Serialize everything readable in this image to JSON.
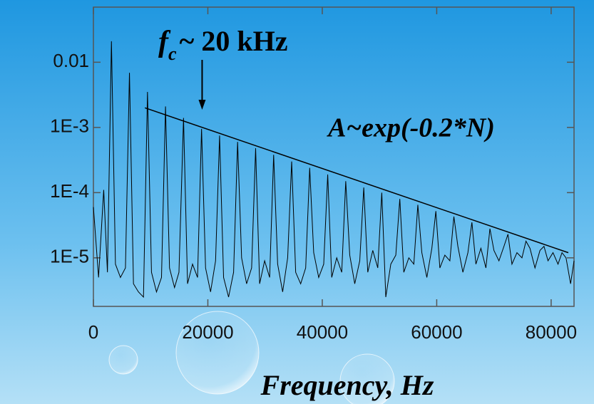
{
  "chart_data": {
    "type": "line",
    "x_label": "Frequency, Hz",
    "yscale": "log",
    "grid": false,
    "xlim": [
      0,
      84000
    ],
    "xticks": [
      0,
      20000,
      40000,
      60000,
      80000
    ],
    "ylim": [
      1.8e-06,
      0.07
    ],
    "yticks": [
      0.01,
      {
        "value": 0.001,
        "label": "1E-3"
      },
      {
        "value": 0.0001,
        "label": "1E-4"
      },
      {
        "value": 1e-05,
        "label": "1E-5"
      }
    ],
    "series": [
      {
        "color": "#000000",
        "x": [
          0,
          900,
          1800,
          2450,
          3150,
          3850,
          4725,
          5600,
          6300,
          7000,
          7875,
          8750,
          9450,
          10150,
          11025,
          11900,
          12600,
          13300,
          14175,
          14950,
          15750,
          16450,
          17325,
          18200,
          18900,
          19600,
          20475,
          21350,
          22050,
          22750,
          23625,
          24500,
          25200,
          25900,
          26775,
          27650,
          28350,
          29050,
          29925,
          30800,
          31500,
          32200,
          33075,
          33950,
          34650,
          35350,
          36225,
          37100,
          37800,
          38500,
          39375,
          40250,
          40950,
          41650,
          42525,
          43400,
          44100,
          44800,
          45675,
          46550,
          47250,
          47950,
          48825,
          49700,
          50400,
          51100,
          51975,
          52850,
          53550,
          54250,
          55125,
          56000,
          56700,
          57400,
          58275,
          59150,
          59850,
          60550,
          61425,
          62300,
          63000,
          63700,
          64575,
          65450,
          66150,
          66850,
          67725,
          68600,
          69300,
          70000,
          70875,
          71750,
          72450,
          73150,
          74025,
          74900,
          75600,
          76300,
          77175,
          78050,
          78750,
          79450,
          80325,
          81200,
          81900,
          82600,
          83400,
          84000
        ],
        "values": [
          6e-05,
          5e-06,
          0.00011,
          6e-06,
          0.021,
          8e-06,
          5e-06,
          7e-06,
          0.0069,
          4e-06,
          3e-06,
          2.5e-06,
          0.0035,
          6e-06,
          3e-06,
          5e-06,
          0.0021,
          7e-06,
          3.5e-06,
          6e-06,
          0.0014,
          4e-06,
          8e-06,
          5e-06,
          0.00095,
          7e-06,
          3e-06,
          9e-06,
          0.00075,
          5e-06,
          2.5e-06,
          6e-06,
          0.0006,
          1e-05,
          4e-06,
          7e-06,
          0.00048,
          4e-06,
          9e-06,
          5e-06,
          0.00038,
          8e-06,
          3e-06,
          1e-05,
          0.0003,
          6e-06,
          4e-06,
          7e-06,
          0.00024,
          1.2e-05,
          5e-06,
          8e-06,
          0.00019,
          5e-06,
          1e-05,
          6e-06,
          0.00015,
          1.1e-05,
          4e-06,
          9e-06,
          0.00012,
          6e-06,
          1.3e-05,
          7e-06,
          0.0001,
          2.5e-06,
          8e-06,
          1.1e-05,
          8e-05,
          6e-06,
          1e-05,
          8e-06,
          6.5e-05,
          1.2e-05,
          5e-06,
          1.4e-05,
          5.2e-05,
          7e-06,
          1.1e-05,
          9e-06,
          4.3e-05,
          1.5e-05,
          6e-06,
          1.2e-05,
          3.5e-05,
          8e-06,
          1.4e-05,
          7e-06,
          2.8e-05,
          1.3e-05,
          9e-06,
          1.5e-05,
          2.3e-05,
          8e-06,
          1.2e-05,
          1e-05,
          1.8e-05,
          1.4e-05,
          7e-06,
          1.3e-05,
          1.5e-05,
          9e-06,
          1.2e-05,
          8e-06,
          1.2e-05,
          1e-05,
          4e-06,
          9e-06
        ]
      },
      {
        "name": "A~exp(-0.2*N)",
        "color": "#000000",
        "x": [
          9000,
          83000
        ],
        "values": [
          0.002,
          1.2e-05
        ]
      }
    ],
    "annotations": [
      {
        "text": "f",
        "subscript": "c",
        "tail": "~ 20 kHz",
        "x": 19000
      }
    ]
  }
}
